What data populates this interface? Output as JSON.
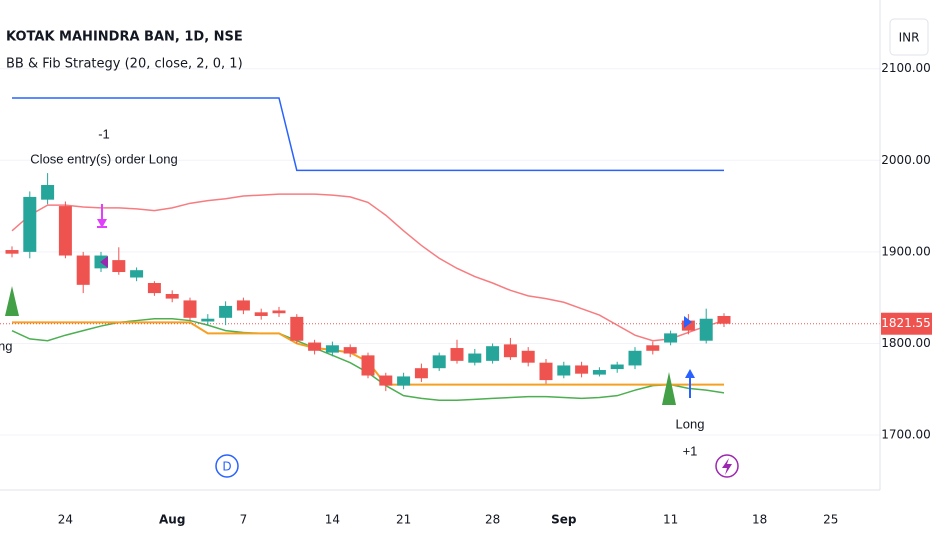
{
  "chart_data": {
    "type": "candlestick",
    "title": "KOTAK MAHINDRA BAN, 1D, NSE",
    "subtitle": "BB & Fib Strategy (20, close, 2, 0, 1)",
    "currency": "INR",
    "categories": [
      null,
      null,
      null,
      "24",
      null,
      null,
      null,
      null,
      null,
      "Aug",
      null,
      null,
      null,
      "7",
      null,
      null,
      null,
      null,
      "14",
      null,
      null,
      null,
      "21",
      null,
      null,
      null,
      null,
      "28",
      null,
      null,
      null,
      "Sep",
      null,
      null,
      null,
      null,
      null,
      "11",
      null,
      null,
      null,
      null,
      "18",
      null,
      null,
      null,
      "25",
      null,
      null
    ],
    "open": [
      1902,
      1900,
      1957,
      1950,
      1896,
      1882,
      1891,
      1872,
      1866,
      1854,
      1847,
      1824,
      1828,
      1847,
      1834,
      1836,
      1829,
      1801,
      1790,
      1796,
      1787,
      1765,
      1754,
      1773,
      1773,
      1795,
      1779,
      1781,
      1799,
      1792,
      1779,
      1765,
      1776,
      1766,
      1772,
      1776,
      1798,
      1801,
      1825,
      1803,
      1830,
      null,
      null,
      null,
      null,
      null,
      null,
      null,
      null
    ],
    "high": [
      1906,
      1966,
      1986,
      1955,
      1900,
      1900,
      1905,
      1883,
      1868,
      1858,
      1850,
      1832,
      1846,
      1850,
      1838,
      1840,
      1832,
      1804,
      1802,
      1799,
      1790,
      1768,
      1768,
      1778,
      1790,
      1804,
      1794,
      1800,
      1806,
      1796,
      1783,
      1780,
      1780,
      1774,
      1780,
      1796,
      1802,
      1814,
      1832,
      1838,
      1833,
      null,
      null,
      null,
      null,
      null,
      null,
      null,
      null
    ],
    "low": [
      1894,
      1893,
      1952,
      1893,
      1855,
      1878,
      1875,
      1868,
      1852,
      1845,
      1825,
      1820,
      1820,
      1832,
      1826,
      1829,
      1800,
      1788,
      1786,
      1785,
      1762,
      1748,
      1750,
      1758,
      1770,
      1778,
      1776,
      1778,
      1782,
      1775,
      1756,
      1762,
      1763,
      1764,
      1768,
      1772,
      1788,
      1798,
      1810,
      1800,
      1818,
      null,
      null,
      null,
      null,
      null,
      null,
      null,
      null
    ],
    "close": [
      1898,
      1960,
      1973,
      1896,
      1864,
      1896,
      1878,
      1880,
      1855,
      1849,
      1828,
      1827,
      1841,
      1836,
      1830,
      1833,
      1803,
      1792,
      1798,
      1789,
      1765,
      1754,
      1764,
      1762,
      1787,
      1781,
      1789,
      1797,
      1785,
      1779,
      1760,
      1776,
      1767,
      1771,
      1777,
      1792,
      1792,
      1811,
      1814,
      1827,
      1821.55,
      null,
      null,
      null,
      null,
      null,
      null,
      null,
      null
    ],
    "up_color": "#26a69a",
    "down_color": "#ef5350",
    "series": [
      {
        "color": "#f77c80",
        "values": [
          1923,
          1940,
          1951,
          1951,
          1949,
          1948,
          1948,
          1947,
          1945,
          1948,
          1953,
          1956,
          1958,
          1961,
          1962,
          1963,
          1963,
          1963,
          1962,
          1960,
          1954,
          1940,
          1923,
          1907,
          1893,
          1882,
          1873,
          1866,
          1858,
          1852,
          1849,
          1845,
          1838,
          1831,
          1820,
          1809,
          1803,
          1805,
          1812,
          1819,
          1825,
          null,
          null,
          null,
          null,
          null,
          null,
          null,
          null
        ]
      },
      {
        "color": "#4caf50",
        "values": [
          1814,
          1805,
          1803,
          1809,
          1814,
          1819,
          1823,
          1825,
          1827,
          1827,
          1825,
          1820,
          1814,
          1812,
          1811,
          1811,
          1803,
          1795,
          1787,
          1779,
          1768,
          1754,
          1743,
          1740,
          1738,
          1738,
          1739,
          1740,
          1741,
          1742,
          1742,
          1741,
          1740,
          1741,
          1743,
          1749,
          1754,
          1755,
          1751,
          1749,
          1746,
          null,
          null,
          null,
          null,
          null,
          null,
          null,
          null
        ]
      },
      {
        "color": "#f5a020",
        "values": [
          1823,
          1823,
          1823,
          1823,
          1823,
          1823,
          1823,
          1823,
          1823,
          1823,
          1823,
          1811,
          1811,
          1811,
          1811,
          1811,
          1800,
          1795,
          1793,
          1790,
          1780,
          1755,
          1755,
          1755,
          1755,
          1755,
          1755,
          1755,
          1755,
          1755,
          1755,
          1755,
          1755,
          1755,
          1755,
          1755,
          1755,
          1755,
          1755,
          1755,
          1755,
          null,
          null,
          null,
          null,
          null,
          null,
          null,
          null
        ]
      },
      {
        "color": "#2962ff",
        "values": [
          2068,
          2068,
          2068,
          2068,
          2068,
          2068,
          2068,
          2068,
          2068,
          2068,
          2068,
          2068,
          2068,
          2068,
          2068,
          2068,
          1989,
          1989,
          1989,
          1989,
          1989,
          1989,
          1989,
          1989,
          1989,
          1989,
          1989,
          1989,
          1989,
          1989,
          1989,
          1989,
          1989,
          1989,
          1989,
          1989,
          1989,
          1989,
          1989,
          1989,
          1989,
          null,
          null,
          null,
          null,
          null,
          null,
          null,
          null
        ]
      }
    ],
    "last_price": 1821.55,
    "annotations": [
      "-1",
      "Close entry(s) order Long",
      "Long",
      "+1",
      "ng"
    ],
    "event_label": "D",
    "ylim": [
      1640,
      2175
    ],
    "yticks": [
      1700,
      1800,
      1900,
      2000,
      2100
    ],
    "grid": true
  }
}
